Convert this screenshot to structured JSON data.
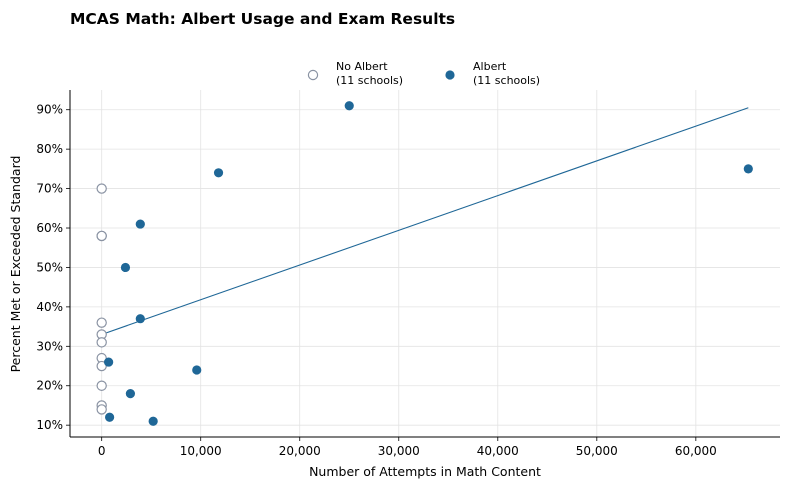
{
  "chart_data": {
    "type": "scatter",
    "title": "MCAS Math: Albert Usage and Exam Results",
    "xlabel": "Number of Attempts in Math Content",
    "ylabel": "Percent Met or Exceeded Standard",
    "xlim": [
      -3200,
      68500
    ],
    "ylim": [
      7,
      95
    ],
    "x_ticks": [
      0,
      10000,
      20000,
      30000,
      40000,
      50000,
      60000
    ],
    "x_tick_labels": [
      "0",
      "10,000",
      "20,000",
      "30,000",
      "40,000",
      "50,000",
      "60,000"
    ],
    "y_ticks": [
      10,
      20,
      30,
      40,
      50,
      60,
      70,
      80,
      90
    ],
    "y_tick_labels": [
      "10%",
      "20%",
      "30%",
      "40%",
      "50%",
      "60%",
      "70%",
      "80%",
      "90%"
    ],
    "grid": true,
    "legend_position": "top-center",
    "series": [
      {
        "name": "No Albert\n(11 schools)",
        "marker": "hollow-circle",
        "color": "#8a93a3",
        "points": [
          {
            "x": 0,
            "y": 70
          },
          {
            "x": 0,
            "y": 58
          },
          {
            "x": 0,
            "y": 36
          },
          {
            "x": 0,
            "y": 33
          },
          {
            "x": 0,
            "y": 31
          },
          {
            "x": 0,
            "y": 27
          },
          {
            "x": 0,
            "y": 25
          },
          {
            "x": 0,
            "y": 20
          },
          {
            "x": 0,
            "y": 15
          },
          {
            "x": 0,
            "y": 14
          },
          {
            "x": 0,
            "y": 58
          }
        ]
      },
      {
        "name": "Albert\n(11 schools)",
        "marker": "filled-circle",
        "color": "#1f6797",
        "points": [
          {
            "x": 25000,
            "y": 91
          },
          {
            "x": 11800,
            "y": 74
          },
          {
            "x": 65300,
            "y": 75
          },
          {
            "x": 3900,
            "y": 61
          },
          {
            "x": 2400,
            "y": 50
          },
          {
            "x": 3900,
            "y": 37
          },
          {
            "x": 700,
            "y": 26
          },
          {
            "x": 9600,
            "y": 24
          },
          {
            "x": 2900,
            "y": 18
          },
          {
            "x": 800,
            "y": 12
          },
          {
            "x": 5200,
            "y": 11
          }
        ]
      }
    ],
    "trend_line": {
      "color": "#1f6797",
      "points": [
        {
          "x": 0,
          "y": 33
        },
        {
          "x": 65300,
          "y": 90.5
        }
      ]
    }
  }
}
